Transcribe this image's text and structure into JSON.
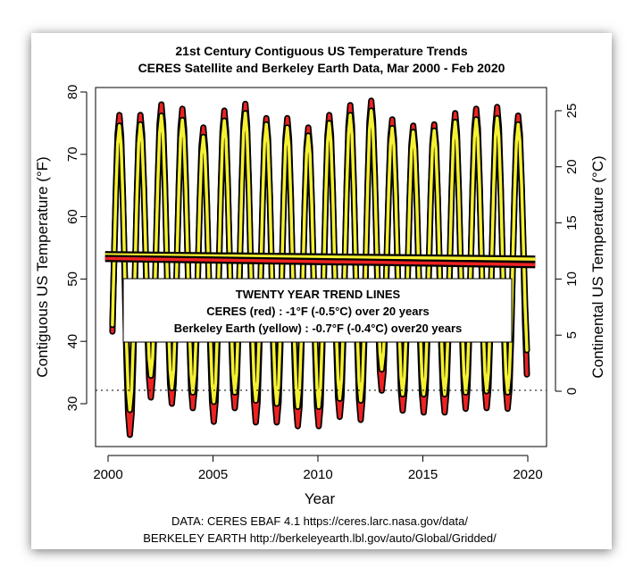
{
  "chart_data": {
    "type": "line",
    "title": [
      "21st Century Contiguous US Temperature Trends",
      "CERES Satellite and Berkeley Earth Data, Mar 2000 - Feb 2020"
    ],
    "xlabel": "Year",
    "ylabel": "Contiguous US Temperature (°F)",
    "ylabel_right": "Continental US Temperature (°C)",
    "xlim": [
      1999.4,
      2020.9
    ],
    "ylim": [
      23.6,
      81
    ],
    "x_ticks": [
      2000,
      2005,
      2010,
      2015,
      2020
    ],
    "y_ticks": [
      30,
      40,
      50,
      60,
      70,
      80
    ],
    "y_right_ticks_c": [
      0,
      5,
      10,
      15,
      20,
      25
    ],
    "freezing_line_f": 32,
    "start": "2000-03",
    "end": "2020-02",
    "series": [
      {
        "name": "CERES (red)",
        "color": "#ee2222",
        "january_f": [
          30,
          25.0,
          31.0,
          30.0,
          29.3,
          27.1,
          29.3,
          27.0,
          27.0,
          26.4,
          26.4,
          27.9,
          27.4,
          32.1,
          28.9,
          28.6,
          28.6,
          29.2,
          29.3,
          29.2,
          31.7
        ],
        "july_f": [
          76.3,
          76.3,
          78.0,
          77.3,
          74.3,
          77.0,
          78.1,
          75.8,
          75.8,
          74.3,
          76.3,
          77.9,
          78.6,
          75.6,
          74.6,
          74.8,
          76.6,
          77.3,
          77.6,
          76.2
        ],
        "final_feb_f": 34,
        "trend": [
          53.3,
          52.3
        ]
      },
      {
        "name": "Berkeley Earth (yellow)",
        "color": "#f5f032",
        "january_f": [
          32,
          29.0,
          34.5,
          32.5,
          31.8,
          30.3,
          31.8,
          30.5,
          30.0,
          29.5,
          29.5,
          30.8,
          30.5,
          35.5,
          31.5,
          31.5,
          31.5,
          31.8,
          32.0,
          31.8,
          36.0
        ],
        "july_f": [
          74.6,
          74.8,
          76.2,
          75.5,
          72.8,
          75.4,
          76.6,
          74.8,
          74.3,
          73.0,
          75.0,
          76.3,
          77.0,
          74.2,
          73.6,
          73.8,
          75.2,
          75.6,
          75.8,
          74.8
        ],
        "final_feb_f": 36.5,
        "trend": [
          53.9,
          53.2
        ]
      }
    ],
    "legend": {
      "placement": "center",
      "title": "TWENTY YEAR TREND LINES",
      "lines": [
        "CERES (red) : -1°F (-0.5°C) over 20 years",
        "Berkeley Earth (yellow) : -0.7°F (-0.4°C) over20 years"
      ]
    },
    "source_lines": [
      "DATA: CERES EBAF 4.1 https://ceres.larc.nasa.gov/data/",
      "BERKELEY EARTH http://berkeleyearth.lbl.gov/auto/Global/Gridded/"
    ]
  }
}
